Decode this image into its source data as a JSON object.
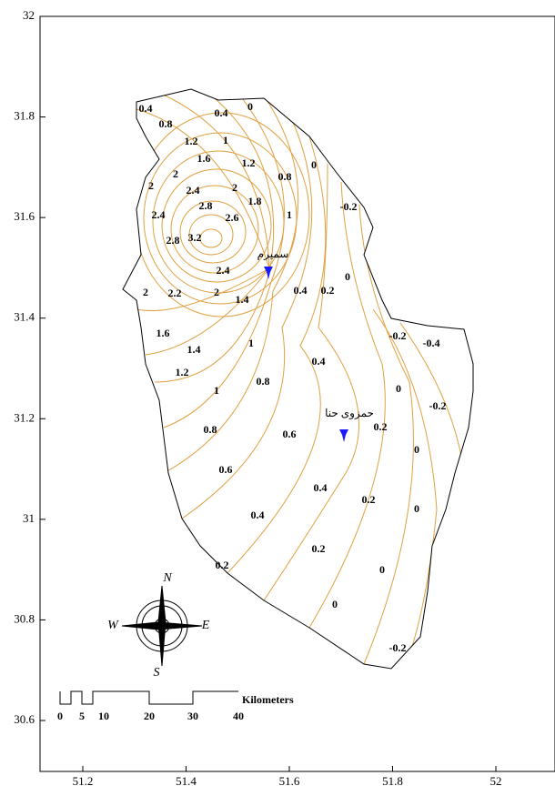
{
  "axes": {
    "y_ticks": [
      "32",
      "31.8",
      "31.6",
      "31.4",
      "31.2",
      "31",
      "30.8",
      "30.6"
    ],
    "x_ticks": [
      "51.2",
      "51.4",
      "51.6",
      "51.8",
      "52"
    ]
  },
  "places": [
    "سمیرم",
    "حمزوی حنا"
  ],
  "contour_labels": [
    "0.4",
    "0.4",
    "0",
    "0.8",
    "1.2",
    "1",
    "1.6",
    "1.2",
    "0",
    "2",
    "2",
    "0.8",
    "2.4",
    "2",
    "1.8",
    "-0.2",
    "2.8",
    "2.6",
    "2.4",
    "3.2",
    "1",
    "2.8",
    "2.4",
    "0",
    "2",
    "2.2",
    "2",
    "0.4",
    "0.2",
    "1.4",
    "1.6",
    "1",
    "-0.2",
    "-0.4",
    "1.4",
    "0.4",
    "1.2",
    "0.8",
    "0",
    "1",
    "-0.2",
    "0.8",
    "0.6",
    "0.2",
    "0",
    "0.6",
    "0.4",
    "0.2",
    "0",
    "0.4",
    "0.2",
    "0",
    "0.2",
    "0",
    "-0.2"
  ],
  "scale_bar": {
    "ticks": [
      "0",
      "5",
      "10",
      "20",
      "30",
      "40"
    ],
    "unit": "Kilometers"
  },
  "compass": [
    "N",
    "W",
    "E",
    "S"
  ]
}
